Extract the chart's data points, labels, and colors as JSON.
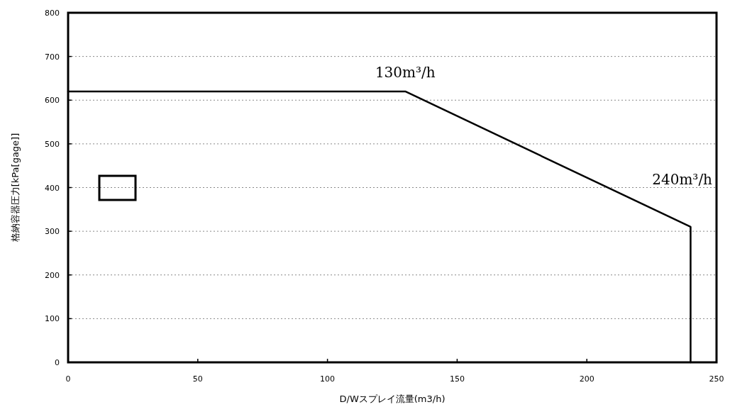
{
  "chart_data": {
    "type": "line",
    "xlabel": "D/Wスプレイ流量(m3/h)",
    "ylabel": "格納容器圧力[kPa[gage]]",
    "series": [
      {
        "color": "#000000",
        "x": [
          0,
          130,
          240,
          240
        ],
        "values": [
          620,
          620,
          310,
          0
        ]
      }
    ],
    "xlim": [
      0,
      250
    ],
    "xticks": [
      0,
      50,
      100,
      150,
      200,
      250
    ],
    "ylim": [
      0,
      800
    ],
    "yticks": [
      0,
      100,
      200,
      300,
      400,
      500,
      600,
      700,
      800
    ],
    "grid": "y",
    "line_style": "solid",
    "marker": "none",
    "annotations": [
      {
        "text": "130m³/h",
        "x": 130,
        "y": 620
      },
      {
        "text": "240m³/h",
        "x": 240,
        "y": 310
      }
    ]
  }
}
